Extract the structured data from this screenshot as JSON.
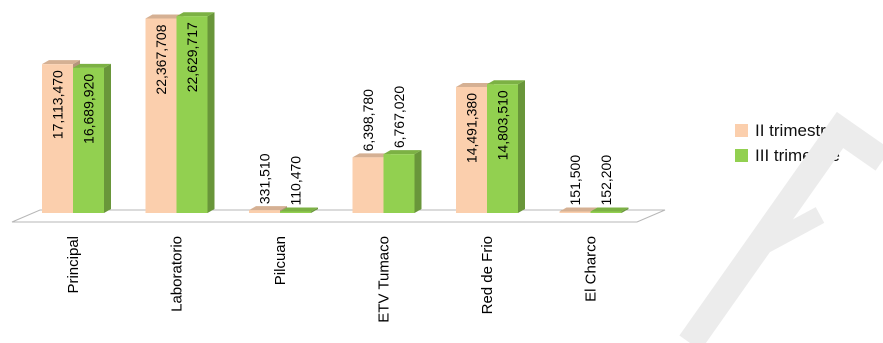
{
  "chart_data": {
    "type": "bar",
    "categories": [
      "Principal",
      "Laboratorio",
      "Pilcuan",
      "ETV Tumaco",
      "Red de Frio",
      "El Charco"
    ],
    "series": [
      {
        "name": "II trimestre",
        "color": "#FBCFAD",
        "values": [
          17113470,
          22367708,
          331510,
          6398780,
          14491380,
          151500
        ]
      },
      {
        "name": "III trimestre",
        "color": "#92D050",
        "values": [
          16689920,
          22629717,
          110470,
          6767020,
          14803510,
          152200
        ]
      }
    ],
    "value_labels": [
      [
        "17,113,470",
        "22,367,708",
        "331,510",
        "6,398,780",
        "14,491,380",
        "151,500"
      ],
      [
        "16,689,920",
        "22,629,717",
        "110,470",
        "6,767,020",
        "14,803,510",
        "152,200"
      ]
    ],
    "title": "",
    "xlabel": "",
    "ylabel": "",
    "ylim": [
      0,
      23000000
    ],
    "grid": false,
    "legend_position": "right"
  }
}
